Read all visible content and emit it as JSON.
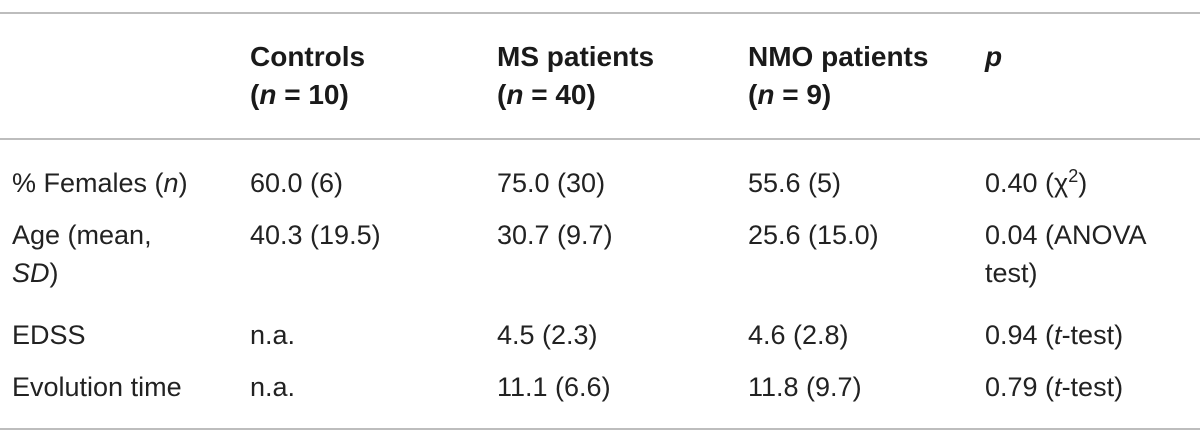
{
  "header": {
    "controls_line1": "Controls",
    "controls_line2_pre": "(",
    "controls_line2_n": "n",
    "controls_line2_post": " = 10)",
    "ms_line1": "MS patients",
    "ms_line2_pre": "(",
    "ms_line2_n": "n",
    "ms_line2_post": " = 40)",
    "nmo_line1": "NMO patients",
    "nmo_line2_pre": "(",
    "nmo_line2_n": "n",
    "nmo_line2_post": " = 9)",
    "p": "p"
  },
  "rows": {
    "females": {
      "label_pre": "% Females (",
      "label_n": "n",
      "label_post": ")",
      "controls": "60.0 (6)",
      "ms": "75.0 (30)",
      "nmo": "55.6 (5)",
      "p_pre": "0.40 (χ",
      "p_sup": "2",
      "p_post": ")"
    },
    "age": {
      "label_line1": "Age (mean,",
      "label_line2_sd": "SD",
      "label_line2_post": ")",
      "controls": "40.3 (19.5)",
      "ms": "30.7 (9.7)",
      "nmo": "25.6 (15.0)",
      "p_line1": "0.04 (ANOVA",
      "p_line2": "test)"
    },
    "edss": {
      "label": "EDSS",
      "controls": "n.a.",
      "ms": "4.5 (2.3)",
      "nmo": "4.6 (2.8)",
      "p_pre": "0.94 (",
      "p_t": "t",
      "p_post": "-test)"
    },
    "evolution": {
      "label": "Evolution time",
      "controls": "n.a.",
      "ms": "11.1 (6.6)",
      "nmo": "11.8 (9.7)",
      "p_pre": "0.79 (",
      "p_t": "t",
      "p_post": "-test)"
    }
  }
}
